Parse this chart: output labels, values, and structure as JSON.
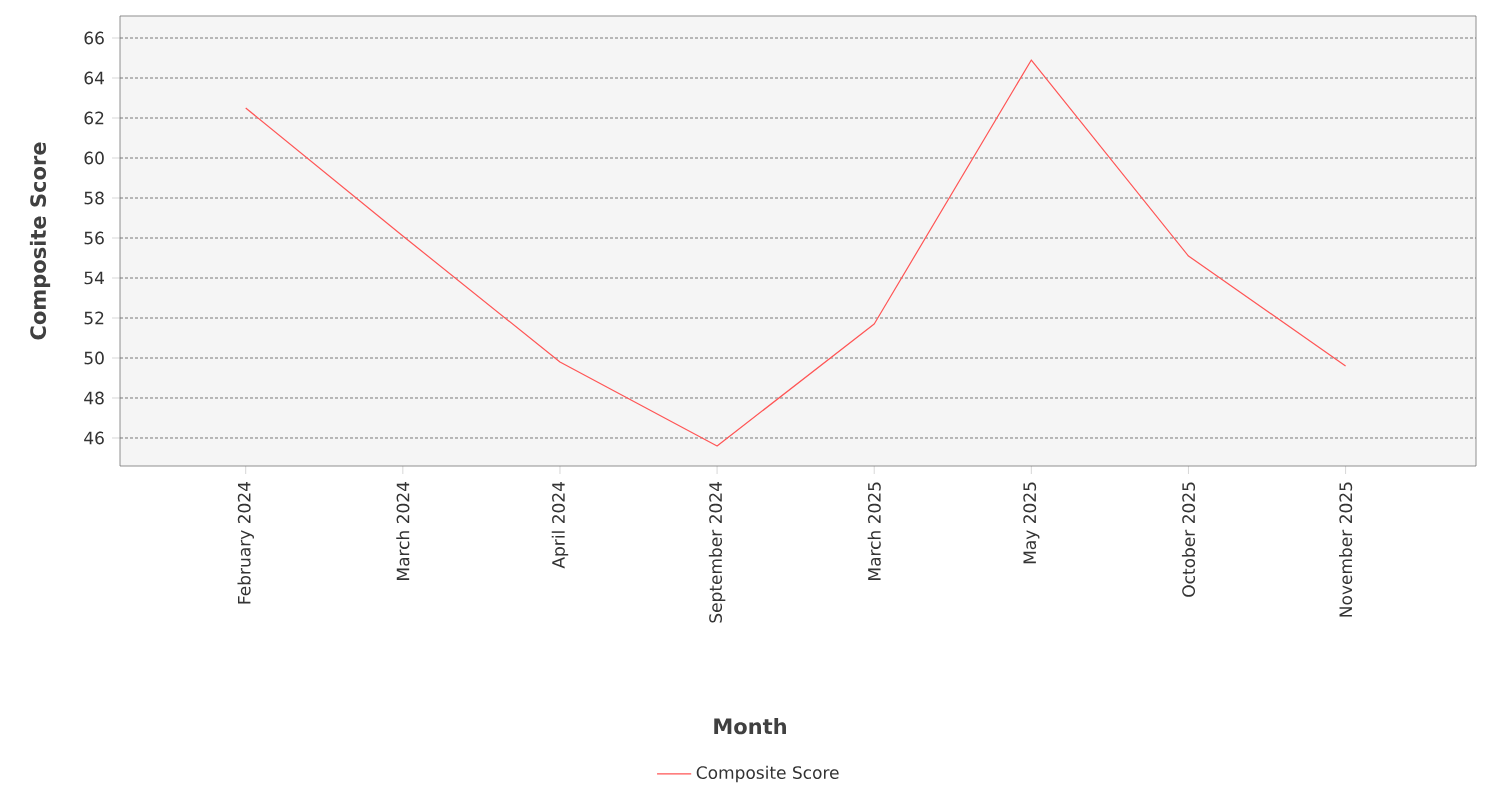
{
  "chart_data": {
    "type": "line",
    "xlabel": "Month",
    "ylabel": "Composite Score",
    "categories": [
      "February 2024",
      "March 2024",
      "April 2024",
      "September 2024",
      "March 2025",
      "May 2025",
      "October 2025",
      "November 2025"
    ],
    "series": [
      {
        "name": "Composite Score",
        "color": "#ff5555",
        "values": [
          62.5,
          56.1,
          49.8,
          45.6,
          51.7,
          64.9,
          55.1,
          49.6
        ]
      }
    ],
    "ylim": [
      44.6,
      67.1
    ],
    "yticks": [
      46,
      48,
      50,
      52,
      54,
      56,
      58,
      60,
      62,
      64,
      66
    ],
    "grid": "y",
    "legend": "bottom",
    "marker": "none",
    "line_style": "solid"
  }
}
